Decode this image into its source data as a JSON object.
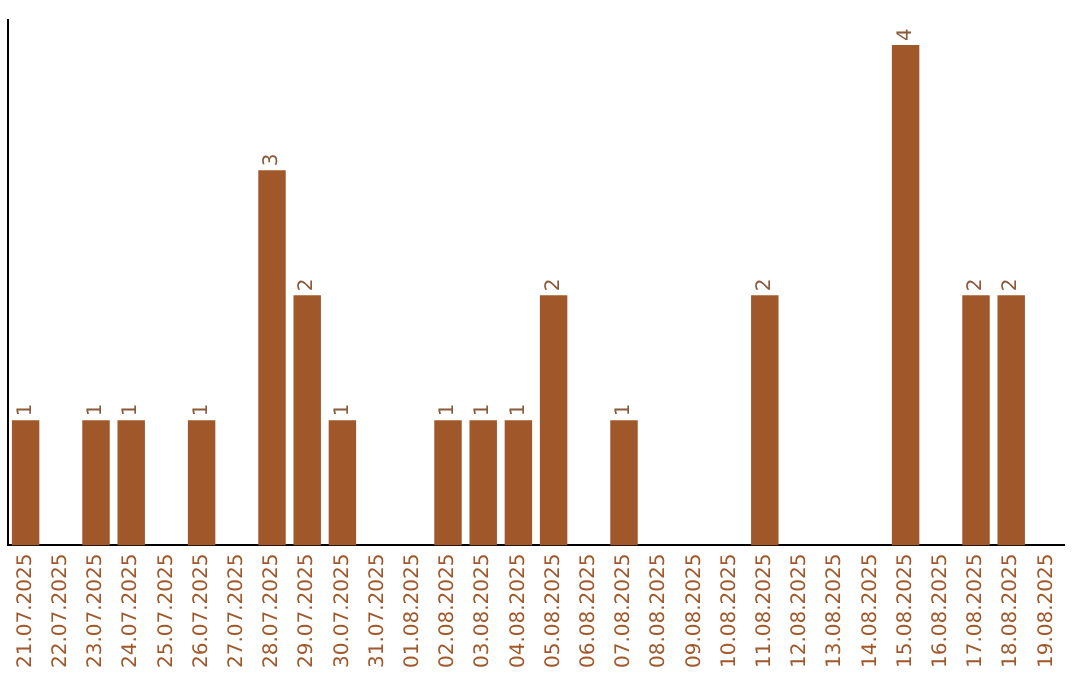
{
  "chart_data": {
    "type": "bar",
    "categories": [
      "21.07.2025",
      "22.07.2025",
      "23.07.2025",
      "24.07.2025",
      "25.07.2025",
      "26.07.2025",
      "27.07.2025",
      "28.07.2025",
      "29.07.2025",
      "30.07.2025",
      "31.07.2025",
      "01.08.2025",
      "02.08.2025",
      "03.08.2025",
      "04.08.2025",
      "05.08.2025",
      "06.08.2025",
      "07.08.2025",
      "08.08.2025",
      "09.08.2025",
      "10.08.2025",
      "11.08.2025",
      "12.08.2025",
      "13.08.2025",
      "14.08.2025",
      "15.08.2025",
      "16.08.2025",
      "17.08.2025",
      "18.08.2025",
      "19.08.2025"
    ],
    "values": [
      1,
      0,
      1,
      1,
      0,
      1,
      0,
      3,
      2,
      1,
      0,
      0,
      1,
      1,
      1,
      2,
      0,
      1,
      0,
      0,
      0,
      2,
      0,
      0,
      0,
      4,
      0,
      2,
      2,
      0
    ],
    "value_labels": [
      "1",
      null,
      "1",
      "1",
      null,
      "1",
      null,
      "3",
      "2",
      "1",
      null,
      null,
      "1",
      "1",
      "1",
      "2",
      null,
      "1",
      null,
      null,
      null,
      "2",
      null,
      null,
      null,
      "4",
      null,
      "2",
      "2",
      null
    ],
    "color": "#a0582a",
    "ylim": [
      0,
      4.2
    ],
    "tick_labels": "x",
    "grid": false,
    "legend": false
  }
}
